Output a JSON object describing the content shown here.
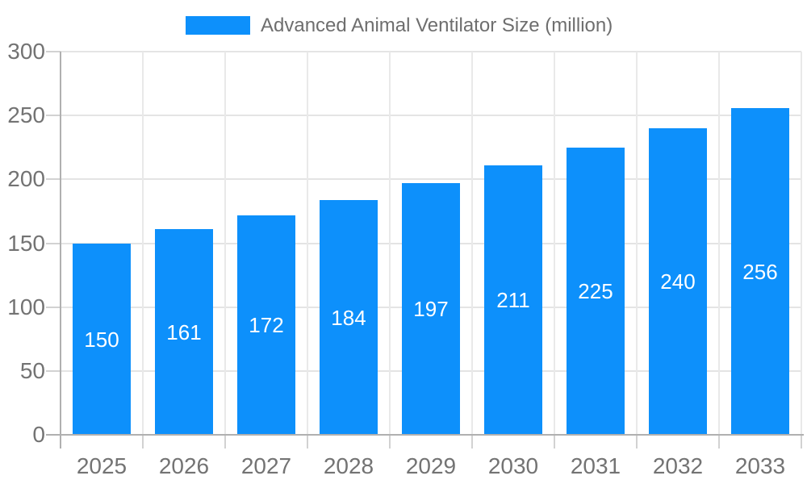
{
  "legend": {
    "label": "Advanced Animal Ventilator Size (million)"
  },
  "chart_data": {
    "type": "bar",
    "title": "Advanced Animal Ventilator Size (million)",
    "series_name": "Advanced Animal Ventilator Size (million)",
    "categories": [
      "2025",
      "2026",
      "2027",
      "2028",
      "2029",
      "2030",
      "2031",
      "2032",
      "2033"
    ],
    "values": [
      150,
      161,
      172,
      184,
      197,
      211,
      225,
      240,
      256
    ],
    "data_labels_shown": true,
    "xlabel": "",
    "ylabel": "",
    "ylim": [
      0,
      300
    ],
    "yticks": [
      0,
      50,
      100,
      150,
      200,
      250,
      300
    ],
    "grid": true,
    "legend_position": "top-center",
    "colors": {
      "bar": "#0d90fb",
      "bar_label": "#ffffff",
      "axis_label": "#737373",
      "legend_text": "#6e6e6e",
      "gridline_h": "#e4e4e4",
      "gridline_v": "#e9e9e9",
      "tick": "#d2d2d2",
      "axis_line": "#b0b0b0",
      "background": "#ffffff"
    }
  }
}
